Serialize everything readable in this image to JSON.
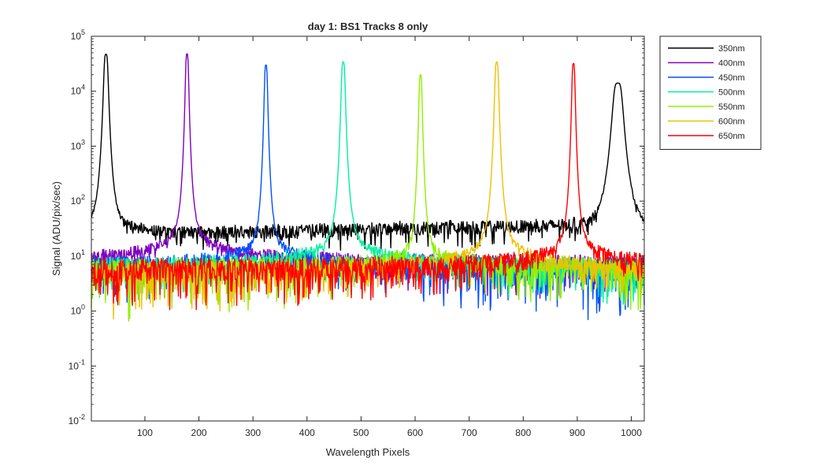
{
  "chart_data": {
    "type": "line",
    "title": "day 1: BS1   Tracks 8 only",
    "xlabel": "Wavelength Pixels",
    "ylabel": "Signal (ADU/pix/sec)",
    "xlim": [
      1,
      1024
    ],
    "ylim": [
      0.01,
      100000
    ],
    "yscale": "log",
    "x_ticks": [
      100,
      200,
      300,
      400,
      500,
      600,
      700,
      800,
      900,
      1000
    ],
    "y_ticks": [
      {
        "value": 0.01,
        "base": "10",
        "exp": "-2"
      },
      {
        "value": 0.1,
        "base": "10",
        "exp": "-1"
      },
      {
        "value": 1,
        "base": "10",
        "exp": "0"
      },
      {
        "value": 10,
        "base": "10",
        "exp": "1"
      },
      {
        "value": 100,
        "base": "10",
        "exp": "2"
      },
      {
        "value": 1000,
        "base": "10",
        "exp": "3"
      },
      {
        "value": 10000,
        "base": "10",
        "exp": "4"
      },
      {
        "value": 100000,
        "base": "10",
        "exp": "5"
      }
    ],
    "grid": false,
    "legend_position": "outside-top-right",
    "series": [
      {
        "name": "350nm",
        "color": "#000000",
        "baseline": 30,
        "noise_low": 0.88,
        "noise_high": 1.1,
        "peaks": [
          {
            "x": 28,
            "value": 47000,
            "width": 3.5
          },
          {
            "x": 975,
            "value": 14000,
            "width": 8
          }
        ]
      },
      {
        "name": "400nm",
        "color": "#8000c0",
        "baseline": 7,
        "noise_low": 0.12,
        "noise_high": 1.4,
        "peaks": [
          {
            "x": 178,
            "value": 48000,
            "width": 2.5
          }
        ]
      },
      {
        "name": "450nm",
        "color": "#0050ff",
        "baseline": 5,
        "noise_low": 0.006,
        "noise_high": 1.7,
        "peaks": [
          {
            "x": 324,
            "value": 30000,
            "width": 2.5
          }
        ]
      },
      {
        "name": "500nm",
        "color": "#00f0a0",
        "baseline": 5,
        "noise_low": 0.04,
        "noise_high": 1.7,
        "peaks": [
          {
            "x": 467,
            "value": 34000,
            "width": 3
          }
        ]
      },
      {
        "name": "550nm",
        "color": "#90f000",
        "baseline": 5,
        "noise_low": 0.04,
        "noise_high": 1.7,
        "peaks": [
          {
            "x": 610,
            "value": 20000,
            "width": 2.5
          }
        ]
      },
      {
        "name": "600nm",
        "color": "#f0c000",
        "baseline": 4,
        "noise_low": 0.006,
        "noise_high": 1.7,
        "peaks": [
          {
            "x": 751,
            "value": 34000,
            "width": 3
          }
        ]
      },
      {
        "name": "650nm",
        "color": "#ff0000",
        "baseline": 5,
        "noise_low": 0.1,
        "noise_high": 1.7,
        "peaks": [
          {
            "x": 893,
            "value": 32000,
            "width": 2.5
          }
        ]
      }
    ]
  }
}
